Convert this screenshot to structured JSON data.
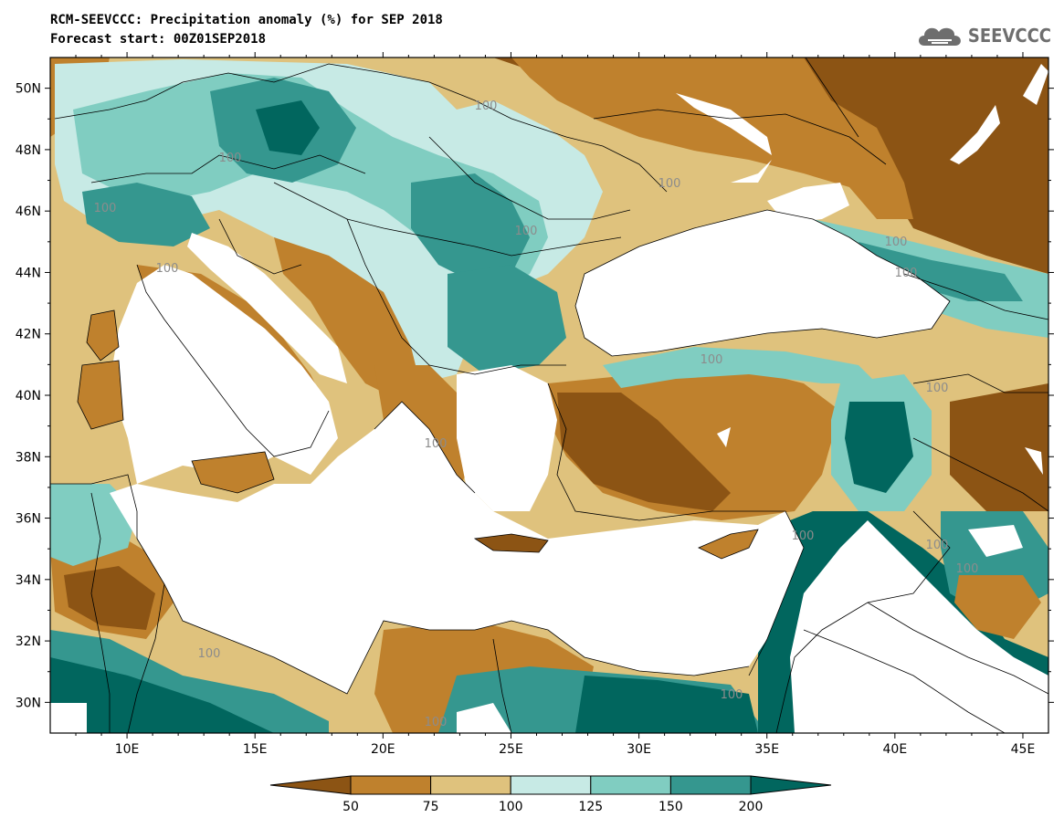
{
  "header": {
    "title_line1": "RCM-SEEVCCC: Precipitation anomaly (%) for SEP 2018",
    "title_line2": "Forecast start: 00Z01SEP2018"
  },
  "logo": {
    "text": "SEEVCCC",
    "icon": "cloud-logo-icon",
    "color": "#6e6e6e"
  },
  "map": {
    "projection": "lat-lon",
    "lon_range": [
      7,
      46
    ],
    "lat_range": [
      29,
      51
    ],
    "lon_ticks": [
      "10E",
      "15E",
      "20E",
      "25E",
      "30E",
      "35E",
      "40E",
      "45E"
    ],
    "lat_ticks": [
      "50N",
      "48N",
      "46N",
      "44N",
      "42N",
      "40N",
      "38N",
      "36N",
      "34N",
      "32N",
      "30N"
    ],
    "contour_label": "100"
  },
  "colorbar": {
    "boundaries": [
      "50",
      "75",
      "100",
      "125",
      "150",
      "200"
    ],
    "colors": [
      "#8c5414",
      "#bf812d",
      "#dfc27d",
      "#c7eae5",
      "#80cdc1",
      "#35978f",
      "#01665e"
    ]
  },
  "chart_data": {
    "type": "heatmap",
    "title": "RCM-SEEVCCC: Precipitation anomaly (%) for SEP 2018",
    "subtitle": "Forecast start: 00Z01SEP2018",
    "units": "%",
    "x_range": [
      7,
      46
    ],
    "y_range": [
      29,
      51
    ],
    "levels": [
      50,
      75,
      100,
      125,
      150,
      200
    ]
  }
}
